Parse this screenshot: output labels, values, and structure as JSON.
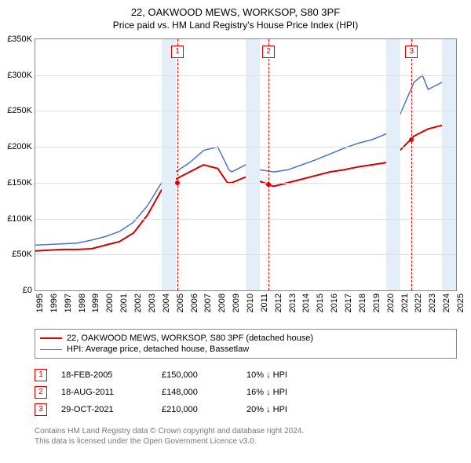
{
  "title": "22, OAKWOOD MEWS, WORKSOP, S80 3PF",
  "subtitle": "Price paid vs. HM Land Registry's House Price Index (HPI)",
  "chart": {
    "type": "line",
    "x_years": [
      1995,
      1996,
      1997,
      1998,
      1999,
      2000,
      2001,
      2002,
      2003,
      2004,
      2005,
      2006,
      2007,
      2008,
      2009,
      2010,
      2011,
      2012,
      2013,
      2014,
      2015,
      2016,
      2017,
      2018,
      2019,
      2020,
      2021,
      2022,
      2023,
      2024,
      2025
    ],
    "ylim": [
      0,
      350000
    ],
    "y_ticks": [
      0,
      50000,
      100000,
      150000,
      200000,
      250000,
      300000,
      350000
    ],
    "y_tick_labels": [
      "£0",
      "£50K",
      "£100K",
      "£150K",
      "£200K",
      "£250K",
      "£300K",
      "£350K"
    ],
    "grid_color": "#e0e0e0",
    "axis_color": "#888888",
    "background_color": "#ffffff",
    "band_color": "#e4eef8",
    "bands_x": [
      [
        2004,
        2005
      ],
      [
        2010,
        2011
      ],
      [
        2020,
        2021
      ],
      [
        2024,
        2025
      ]
    ],
    "series": [
      {
        "name": "price_paid",
        "label": "22, OAKWOOD MEWS, WORKSOP, S80 3PF (detached house)",
        "color": "#d00000",
        "width": 2,
        "pts": [
          [
            1995,
            55000
          ],
          [
            1996,
            56000
          ],
          [
            1997,
            57000
          ],
          [
            1998,
            57000
          ],
          [
            1999,
            58000
          ],
          [
            2000,
            63000
          ],
          [
            2001,
            68000
          ],
          [
            2002,
            80000
          ],
          [
            2003,
            105000
          ],
          [
            2004,
            140000
          ],
          [
            2005,
            155000
          ],
          [
            2006,
            165000
          ],
          [
            2007,
            175000
          ],
          [
            2008,
            170000
          ],
          [
            2008.7,
            150000
          ],
          [
            2009,
            150000
          ],
          [
            2010,
            158000
          ],
          [
            2011,
            152000
          ],
          [
            2012,
            145000
          ],
          [
            2013,
            150000
          ],
          [
            2014,
            155000
          ],
          [
            2015,
            160000
          ],
          [
            2016,
            165000
          ],
          [
            2017,
            168000
          ],
          [
            2018,
            172000
          ],
          [
            2019,
            175000
          ],
          [
            2020,
            178000
          ],
          [
            2021,
            195000
          ],
          [
            2022,
            215000
          ],
          [
            2023,
            225000
          ],
          [
            2024,
            230000
          ],
          [
            2025,
            235000
          ]
        ]
      },
      {
        "name": "hpi",
        "label": "HPI: Average price, detached house, Bassetlaw",
        "color": "#4a74c9",
        "width": 1.5,
        "pts": [
          [
            1995,
            63000
          ],
          [
            1996,
            64000
          ],
          [
            1997,
            65000
          ],
          [
            1998,
            66000
          ],
          [
            1999,
            70000
          ],
          [
            2000,
            75000
          ],
          [
            2001,
            82000
          ],
          [
            2002,
            95000
          ],
          [
            2003,
            118000
          ],
          [
            2004,
            150000
          ],
          [
            2005,
            165000
          ],
          [
            2006,
            178000
          ],
          [
            2007,
            195000
          ],
          [
            2008,
            200000
          ],
          [
            2008.8,
            168000
          ],
          [
            2009,
            165000
          ],
          [
            2010,
            175000
          ],
          [
            2011,
            168000
          ],
          [
            2012,
            165000
          ],
          [
            2013,
            168000
          ],
          [
            2014,
            175000
          ],
          [
            2015,
            182000
          ],
          [
            2016,
            190000
          ],
          [
            2017,
            198000
          ],
          [
            2018,
            205000
          ],
          [
            2019,
            210000
          ],
          [
            2020,
            218000
          ],
          [
            2021,
            245000
          ],
          [
            2022,
            290000
          ],
          [
            2022.6,
            300000
          ],
          [
            2023,
            280000
          ],
          [
            2024,
            290000
          ],
          [
            2025,
            300000
          ]
        ]
      }
    ],
    "markers": [
      {
        "n": "1",
        "x": 2005.13,
        "y": 150000,
        "flag_top": 8
      },
      {
        "n": "2",
        "x": 2011.63,
        "y": 148000,
        "flag_top": 8
      },
      {
        "n": "3",
        "x": 2021.83,
        "y": 210000,
        "flag_top": 8
      }
    ]
  },
  "legend": [
    {
      "key": "red",
      "text": "22, OAKWOOD MEWS, WORKSOP, S80 3PF (detached house)"
    },
    {
      "key": "blue",
      "text": "HPI: Average price, detached house, Bassetlaw"
    }
  ],
  "sales": [
    {
      "n": "1",
      "date": "18-FEB-2005",
      "price": "£150,000",
      "hpi": "10% ↓ HPI"
    },
    {
      "n": "2",
      "date": "18-AUG-2011",
      "price": "£148,000",
      "hpi": "16% ↓ HPI"
    },
    {
      "n": "3",
      "date": "29-OCT-2021",
      "price": "£210,000",
      "hpi": "20% ↓ HPI"
    }
  ],
  "footer": [
    "Contains HM Land Registry data © Crown copyright and database right 2024.",
    "This data is licensed under the Open Government Licence v3.0."
  ]
}
